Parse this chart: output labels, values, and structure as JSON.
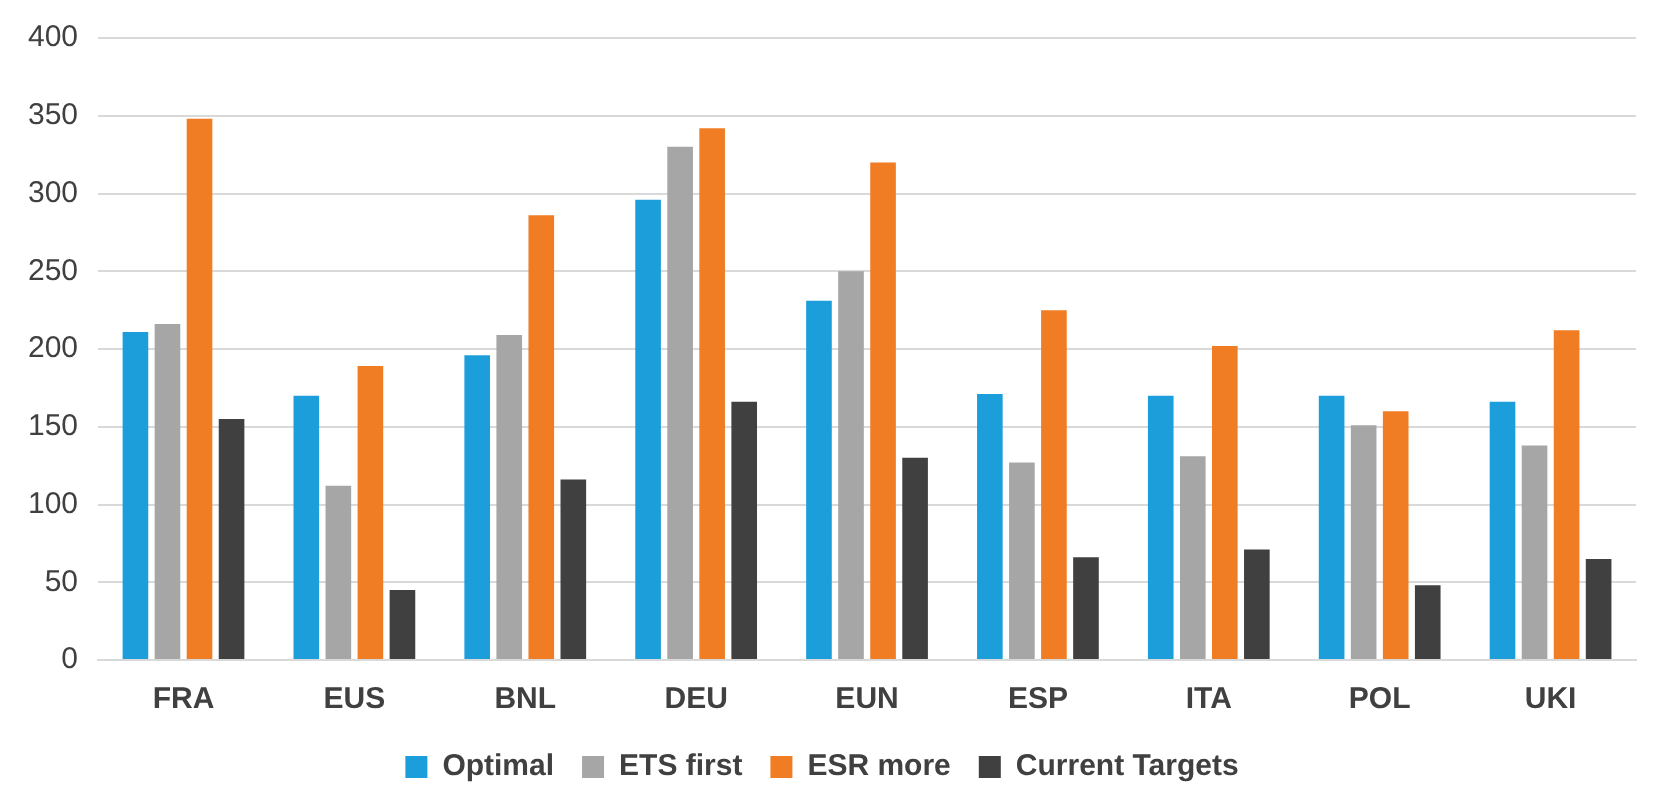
{
  "chart_data": {
    "type": "bar",
    "categories": [
      "FRA",
      "EUS",
      "BNL",
      "DEU",
      "EUN",
      "ESP",
      "ITA",
      "POL",
      "UKI"
    ],
    "series": [
      {
        "name": "Optimal",
        "color": "#1b9ed9",
        "values": [
          211,
          170,
          196,
          296,
          231,
          171,
          170,
          170,
          166
        ]
      },
      {
        "name": "ETS first",
        "color": "#a6a6a6",
        "values": [
          216,
          112,
          209,
          330,
          250,
          127,
          131,
          151,
          138
        ]
      },
      {
        "name": "ESR more",
        "color": "#f07c24",
        "values": [
          348,
          189,
          286,
          342,
          320,
          225,
          202,
          160,
          212
        ]
      },
      {
        "name": "Current Targets",
        "color": "#404040",
        "values": [
          155,
          45,
          116,
          166,
          130,
          66,
          71,
          48,
          65
        ]
      }
    ],
    "ylim": [
      0,
      400
    ],
    "yticks": [
      0,
      50,
      100,
      150,
      200,
      250,
      300,
      350,
      400
    ],
    "grid": "y",
    "legend": "bottom"
  }
}
